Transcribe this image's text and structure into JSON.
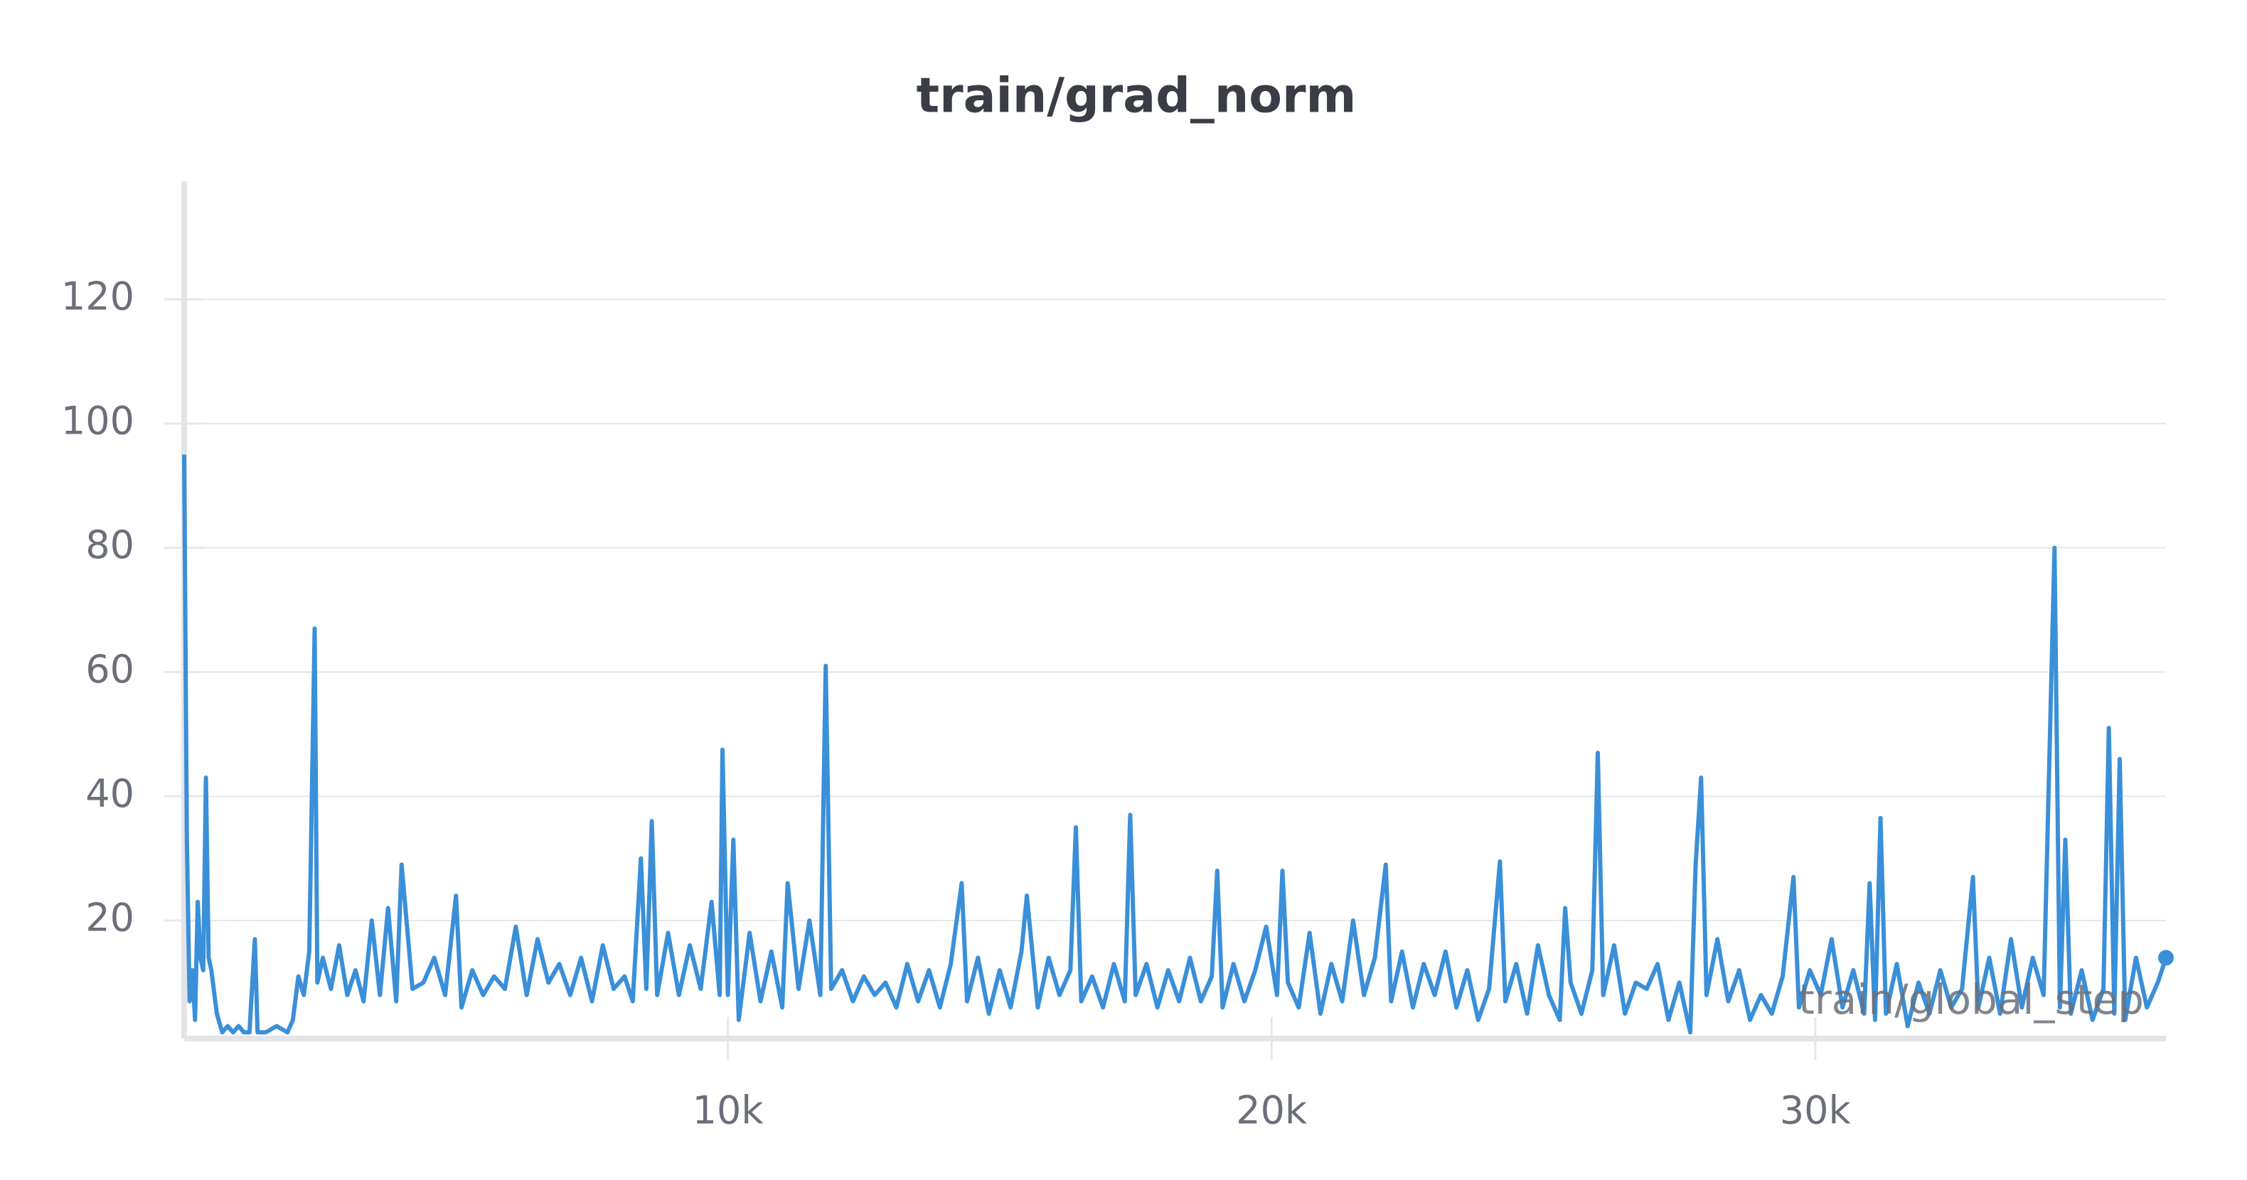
{
  "chart_data": {
    "type": "line",
    "title": "train/grad_norm",
    "x_label": "train/global_step",
    "x": [
      0,
      50,
      100,
      150,
      200,
      250,
      300,
      350,
      400,
      450,
      500,
      600,
      700,
      800,
      900,
      1000,
      1100,
      1200,
      1300,
      1350,
      1500,
      1700,
      1900,
      2000,
      2100,
      2200,
      2300,
      2400,
      2450,
      2550,
      2700,
      2850,
      3000,
      3150,
      3300,
      3450,
      3600,
      3750,
      3900,
      4000,
      4200,
      4400,
      4600,
      4800,
      5000,
      5100,
      5300,
      5500,
      5700,
      5900,
      6100,
      6300,
      6500,
      6700,
      6900,
      7100,
      7300,
      7500,
      7700,
      7900,
      8100,
      8250,
      8400,
      8500,
      8600,
      8700,
      8900,
      9100,
      9300,
      9500,
      9700,
      9850,
      9900,
      10000,
      10100,
      10200,
      10400,
      10600,
      10800,
      11000,
      11100,
      11300,
      11500,
      11700,
      11800,
      11900,
      12100,
      12300,
      12500,
      12700,
      12900,
      13100,
      13300,
      13500,
      13700,
      13900,
      14100,
      14300,
      14400,
      14600,
      14800,
      15000,
      15200,
      15400,
      15500,
      15700,
      15900,
      16100,
      16300,
      16400,
      16500,
      16700,
      16900,
      17100,
      17300,
      17400,
      17500,
      17700,
      17900,
      18100,
      18300,
      18500,
      18700,
      18900,
      19000,
      19100,
      19300,
      19500,
      19700,
      19900,
      20100,
      20200,
      20300,
      20500,
      20700,
      20900,
      21100,
      21300,
      21500,
      21700,
      21900,
      22100,
      22200,
      22400,
      22600,
      22800,
      23000,
      23200,
      23400,
      23600,
      23800,
      24000,
      24200,
      24300,
      24500,
      24700,
      24900,
      25100,
      25300,
      25400,
      25500,
      25700,
      25900,
      26000,
      26100,
      26300,
      26500,
      26700,
      26900,
      27100,
      27300,
      27500,
      27700,
      27800,
      27900,
      28000,
      28200,
      28400,
      28600,
      28800,
      29000,
      29200,
      29400,
      29600,
      29700,
      29900,
      30100,
      30300,
      30500,
      30700,
      30900,
      31000,
      31100,
      31200,
      31300,
      31500,
      31700,
      31900,
      32100,
      32300,
      32500,
      32700,
      32900,
      33000,
      33200,
      33400,
      33600,
      33800,
      34000,
      34200,
      34400,
      34500,
      34600,
      34700,
      34900,
      35100,
      35300,
      35400,
      35500,
      35600,
      35700,
      35900,
      36100,
      36300,
      36450
    ],
    "series": [
      {
        "color": "#3a8fd9",
        "values": [
          95,
          33,
          7,
          12,
          4,
          23,
          14,
          12,
          43,
          14,
          12,
          5,
          2,
          3,
          2,
          3,
          2,
          2,
          17,
          2,
          2,
          3,
          2,
          4,
          11,
          8,
          15,
          67,
          10,
          14,
          9,
          16,
          8,
          12,
          7,
          20,
          8,
          22,
          7,
          29,
          9,
          10,
          14,
          8,
          24,
          6,
          12,
          8,
          11,
          9,
          19,
          8,
          17,
          10,
          13,
          8,
          14,
          7,
          16,
          9,
          11,
          7,
          30,
          9,
          36,
          8,
          18,
          8,
          16,
          9,
          23,
          8,
          47.5,
          8,
          33,
          4,
          18,
          7,
          15,
          6,
          26,
          9,
          20,
          8,
          61,
          9,
          12,
          7,
          11,
          8,
          10,
          6,
          13,
          7,
          12,
          6,
          13,
          26,
          7,
          14,
          5,
          12,
          6,
          15,
          24,
          6,
          14,
          8,
          12,
          35,
          7,
          11,
          6,
          13,
          7,
          37,
          8,
          13,
          6,
          12,
          7,
          14,
          7,
          11,
          28,
          6,
          13,
          7,
          12,
          19,
          8,
          28,
          10,
          6,
          18,
          5,
          13,
          7,
          20,
          8,
          14,
          29,
          7,
          15,
          6,
          13,
          8,
          15,
          6,
          12,
          4,
          9,
          29.5,
          7,
          13,
          5,
          16,
          8,
          4,
          22,
          10,
          5,
          12,
          47,
          8,
          16,
          5,
          10,
          9,
          13,
          4,
          10,
          2,
          29,
          43,
          8,
          17,
          7,
          12,
          4,
          8,
          5,
          11,
          27,
          6,
          12,
          8,
          17,
          6,
          12,
          5,
          26,
          4,
          36.5,
          5,
          13,
          3,
          10,
          5,
          12,
          6,
          9,
          27,
          6,
          14,
          5,
          17,
          6,
          14,
          8,
          80,
          6,
          33,
          5,
          12,
          4,
          9,
          51,
          5,
          46,
          4,
          14,
          6,
          10,
          14
        ]
      }
    ],
    "xlim": [
      0,
      36450
    ],
    "ylim": [
      1,
      139
    ],
    "xticks": [
      {
        "value": 10000,
        "label": "10k"
      },
      {
        "value": 20000,
        "label": "20k"
      },
      {
        "value": 30000,
        "label": "30k"
      }
    ],
    "yticks": [
      20,
      40,
      60,
      80,
      100,
      120
    ],
    "grid": true
  }
}
